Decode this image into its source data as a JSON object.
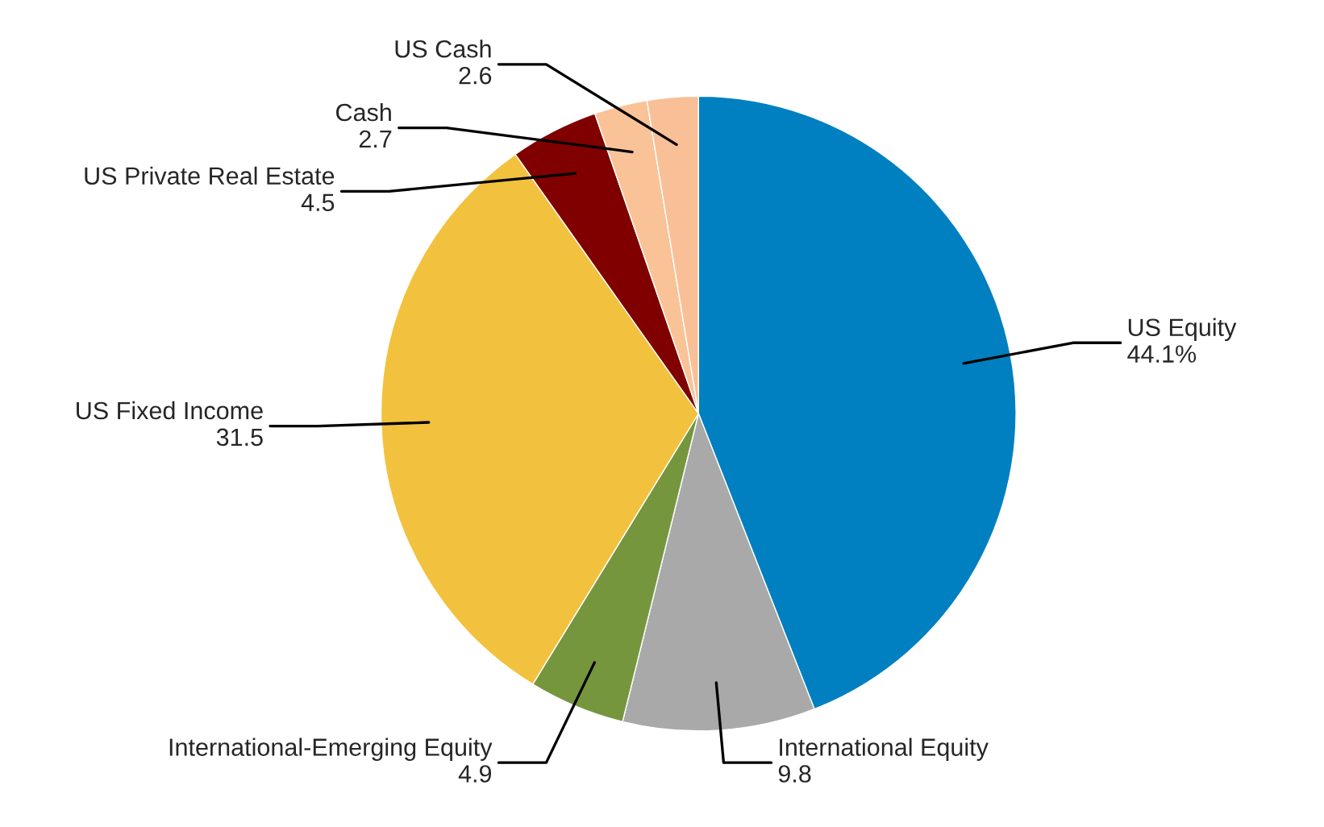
{
  "chart_data": {
    "type": "pie",
    "categories": [
      "US Equity",
      "International Equity",
      "International-Emerging Equity",
      "US Fixed Income",
      "US Private Real Estate",
      "Cash",
      "US Cash"
    ],
    "values": [
      44.1,
      9.8,
      4.9,
      31.5,
      4.5,
      2.7,
      2.6
    ],
    "value_labels": [
      "44.1%",
      "9.8",
      "4.9",
      "31.5",
      "4.5",
      "2.7",
      "2.6"
    ],
    "colors": [
      "#0080c0",
      "#a9a9a9",
      "#76963e",
      "#f2c23e",
      "#800000",
      "#f9c397",
      "#f9c097"
    ]
  }
}
